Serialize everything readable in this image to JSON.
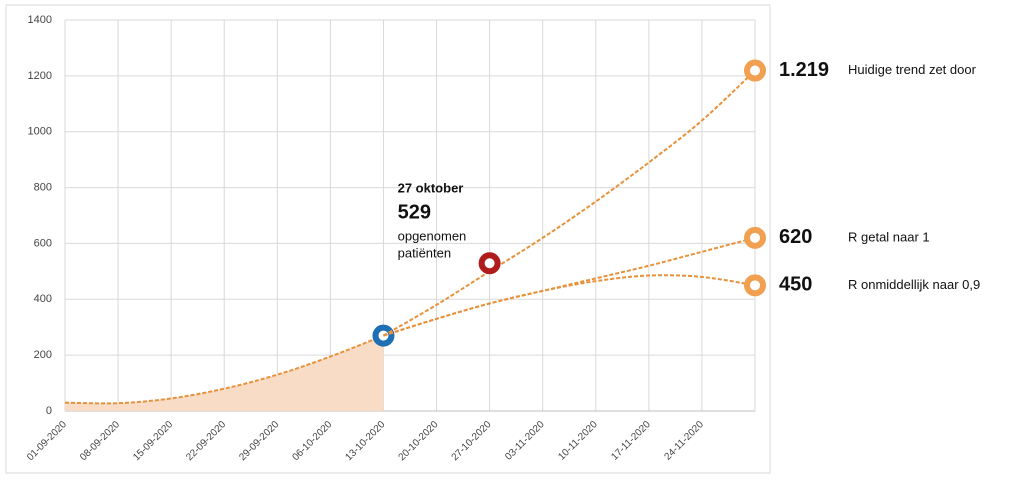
{
  "chart_data": {
    "type": "line",
    "categories": [
      "01-09-2020",
      "08-09-2020",
      "15-09-2020",
      "22-09-2020",
      "29-09-2020",
      "06-10-2020",
      "13-10-2020",
      "20-10-2020",
      "27-10-2020",
      "03-11-2020",
      "10-11-2020",
      "17-11-2020",
      "24-11-2020",
      null
    ],
    "ylim": [
      0,
      1400
    ],
    "yticks": [
      0,
      200,
      400,
      600,
      800,
      1000,
      1200,
      1400
    ],
    "grid": true,
    "series": [
      {
        "color": "#e8913a",
        "fill": "#f9dcc6",
        "values": [
          30,
          28,
          45,
          80,
          130,
          195,
          270,
          null,
          null,
          null,
          null,
          null,
          null,
          null
        ]
      },
      {
        "name": "Huidige trend zet door",
        "color": "#e8913a",
        "values": [
          null,
          null,
          null,
          null,
          null,
          null,
          270,
          380,
          500,
          620,
          750,
          890,
          1040,
          1219
        ],
        "value_labels": [
          null,
          null,
          null,
          null,
          null,
          null,
          null,
          null,
          null,
          null,
          null,
          null,
          null,
          "1.219"
        ]
      },
      {
        "name": "R getal naar 1",
        "color": "#e8913a",
        "values": [
          null,
          null,
          null,
          null,
          null,
          null,
          270,
          330,
          385,
          430,
          475,
          520,
          570,
          620
        ]
      },
      {
        "name": "R onmiddellijk naar 0,9",
        "color": "#e8913a",
        "values": [
          null,
          null,
          null,
          null,
          null,
          null,
          270,
          330,
          385,
          430,
          465,
          485,
          480,
          450
        ]
      }
    ],
    "annotation": {
      "x": "27-10-2020",
      "date": "27 oktober",
      "value": 529,
      "lines": [
        "opgenomen",
        "patiënten"
      ],
      "color": "#b01c1c"
    },
    "current_color": "#1f6fb5"
  }
}
